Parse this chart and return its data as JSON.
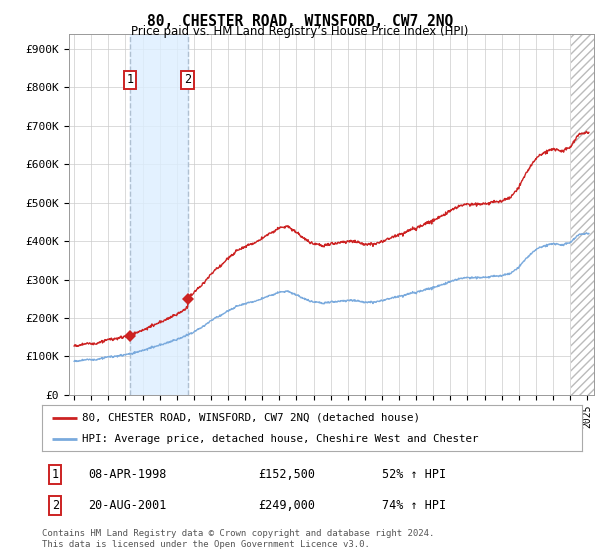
{
  "title": "80, CHESTER ROAD, WINSFORD, CW7 2NQ",
  "subtitle": "Price paid vs. HM Land Registry’s House Price Index (HPI)",
  "ylabel_ticks": [
    "£0",
    "£100K",
    "£200K",
    "£300K",
    "£400K",
    "£500K",
    "£600K",
    "£700K",
    "£800K",
    "£900K"
  ],
  "ytick_values": [
    0,
    100000,
    200000,
    300000,
    400000,
    500000,
    600000,
    700000,
    800000,
    900000
  ],
  "ylim": [
    0,
    940000
  ],
  "xlim_start": 1994.7,
  "xlim_end": 2025.4,
  "sale1_date": 1998.27,
  "sale1_price": 152500,
  "sale2_date": 2001.63,
  "sale2_price": 249000,
  "sale1_label": "08-APR-1998",
  "sale1_amount": "£152,500",
  "sale1_pct": "52% ↑ HPI",
  "sale2_label": "20-AUG-2001",
  "sale2_amount": "£249,000",
  "sale2_pct": "74% ↑ HPI",
  "legend_line1": "80, CHESTER ROAD, WINSFORD, CW7 2NQ (detached house)",
  "legend_line2": "HPI: Average price, detached house, Cheshire West and Chester",
  "footer": "Contains HM Land Registry data © Crown copyright and database right 2024.\nThis data is licensed under the Open Government Licence v3.0.",
  "hpi_color": "#7aaadd",
  "price_color": "#cc2222",
  "vline_color": "#aabbcc",
  "shade_color": "#ddeeff",
  "background_color": "#ffffff",
  "grid_color": "#cccccc",
  "hatch_color": "#bbbbbb"
}
